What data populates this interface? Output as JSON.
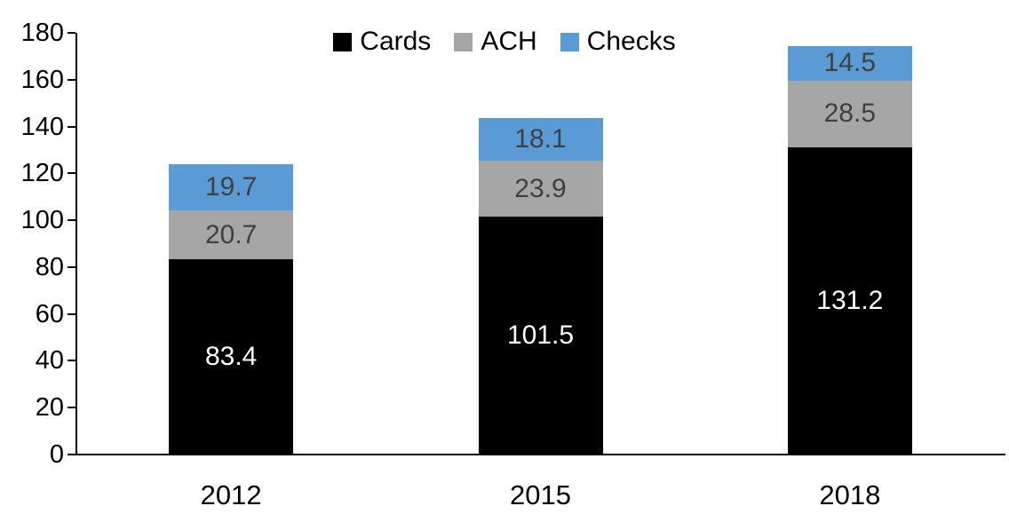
{
  "chart_data": {
    "type": "bar",
    "stacked": true,
    "title": "",
    "xlabel": "",
    "ylabel": "",
    "categories": [
      "2012",
      "2015",
      "2018"
    ],
    "series": [
      {
        "name": "Cards",
        "color": "#000000",
        "label_color": "#ffffff",
        "values": [
          83.4,
          101.5,
          131.2
        ]
      },
      {
        "name": "ACH",
        "color": "#a6a6a6",
        "label_color": "#404040",
        "values": [
          20.7,
          23.9,
          28.5
        ]
      },
      {
        "name": "Checks",
        "color": "#5b9bd5",
        "label_color": "#404040",
        "values": [
          19.7,
          18.1,
          14.5
        ]
      }
    ],
    "ylim": [
      0,
      180
    ],
    "ytick_step": 20,
    "ytick_labels": [
      "0",
      "20",
      "40",
      "60",
      "80",
      "100",
      "120",
      "140",
      "160",
      "180"
    ],
    "legend_position": "top",
    "grid": false,
    "axis_color": "#000000"
  }
}
